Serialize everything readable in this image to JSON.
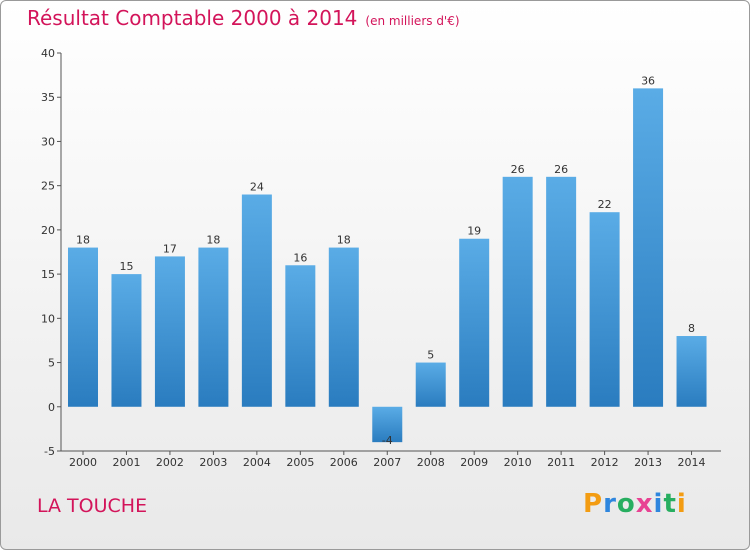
{
  "header": {
    "title": "Résultat Comptable 2000 à 2014",
    "unit": "(en milliers d'€)"
  },
  "footer": {
    "commune": "LA TOUCHE",
    "brand_parts": [
      "P",
      "r",
      "o",
      "x",
      "i",
      "t",
      "i"
    ]
  },
  "colors": {
    "title": "#d3145a",
    "bar_top": "#5aace6",
    "bar_bottom": "#2a7cbf",
    "axis": "#555555"
  },
  "chart_data": {
    "type": "bar",
    "title": "Résultat Comptable 2000 à 2014",
    "ylabel": "en milliers d'€",
    "xlabel": "",
    "categories": [
      "2000",
      "2001",
      "2002",
      "2003",
      "2004",
      "2005",
      "2006",
      "2007",
      "2008",
      "2009",
      "2010",
      "2011",
      "2012",
      "2013",
      "2014"
    ],
    "values": [
      18,
      15,
      17,
      18,
      24,
      16,
      18,
      -4,
      5,
      19,
      26,
      26,
      22,
      36,
      8
    ],
    "ylim": [
      -5,
      40
    ],
    "yticks": [
      -5,
      0,
      5,
      10,
      15,
      20,
      25,
      30,
      35,
      40
    ],
    "grid": false,
    "legend": "none"
  }
}
